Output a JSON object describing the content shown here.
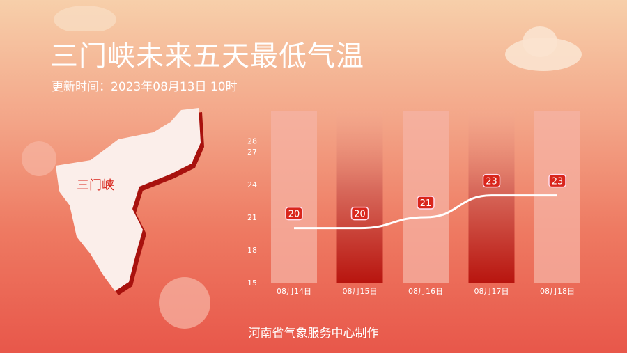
{
  "header": {
    "title": "三门峡未来五天最低气温",
    "updated": "更新时间：2023年08月13日 10时"
  },
  "map": {
    "label": "三门峡"
  },
  "footer": {
    "credit": "河南省气象服务中心制作"
  },
  "colors": {
    "line": "#ffffff",
    "label_bg": "#d9261c",
    "bar_light": "#f5b3a4",
    "bar_dark": "#b8150f"
  },
  "chart_data": {
    "type": "line",
    "categories": [
      "08月14日",
      "08月15日",
      "08月16日",
      "08月17日",
      "08月18日"
    ],
    "values": [
      20,
      20,
      21,
      23,
      23
    ],
    "yticks": [
      15,
      18,
      21,
      24,
      27,
      28
    ],
    "ylim": [
      15,
      28
    ],
    "grid": false,
    "line_smooth": true
  }
}
